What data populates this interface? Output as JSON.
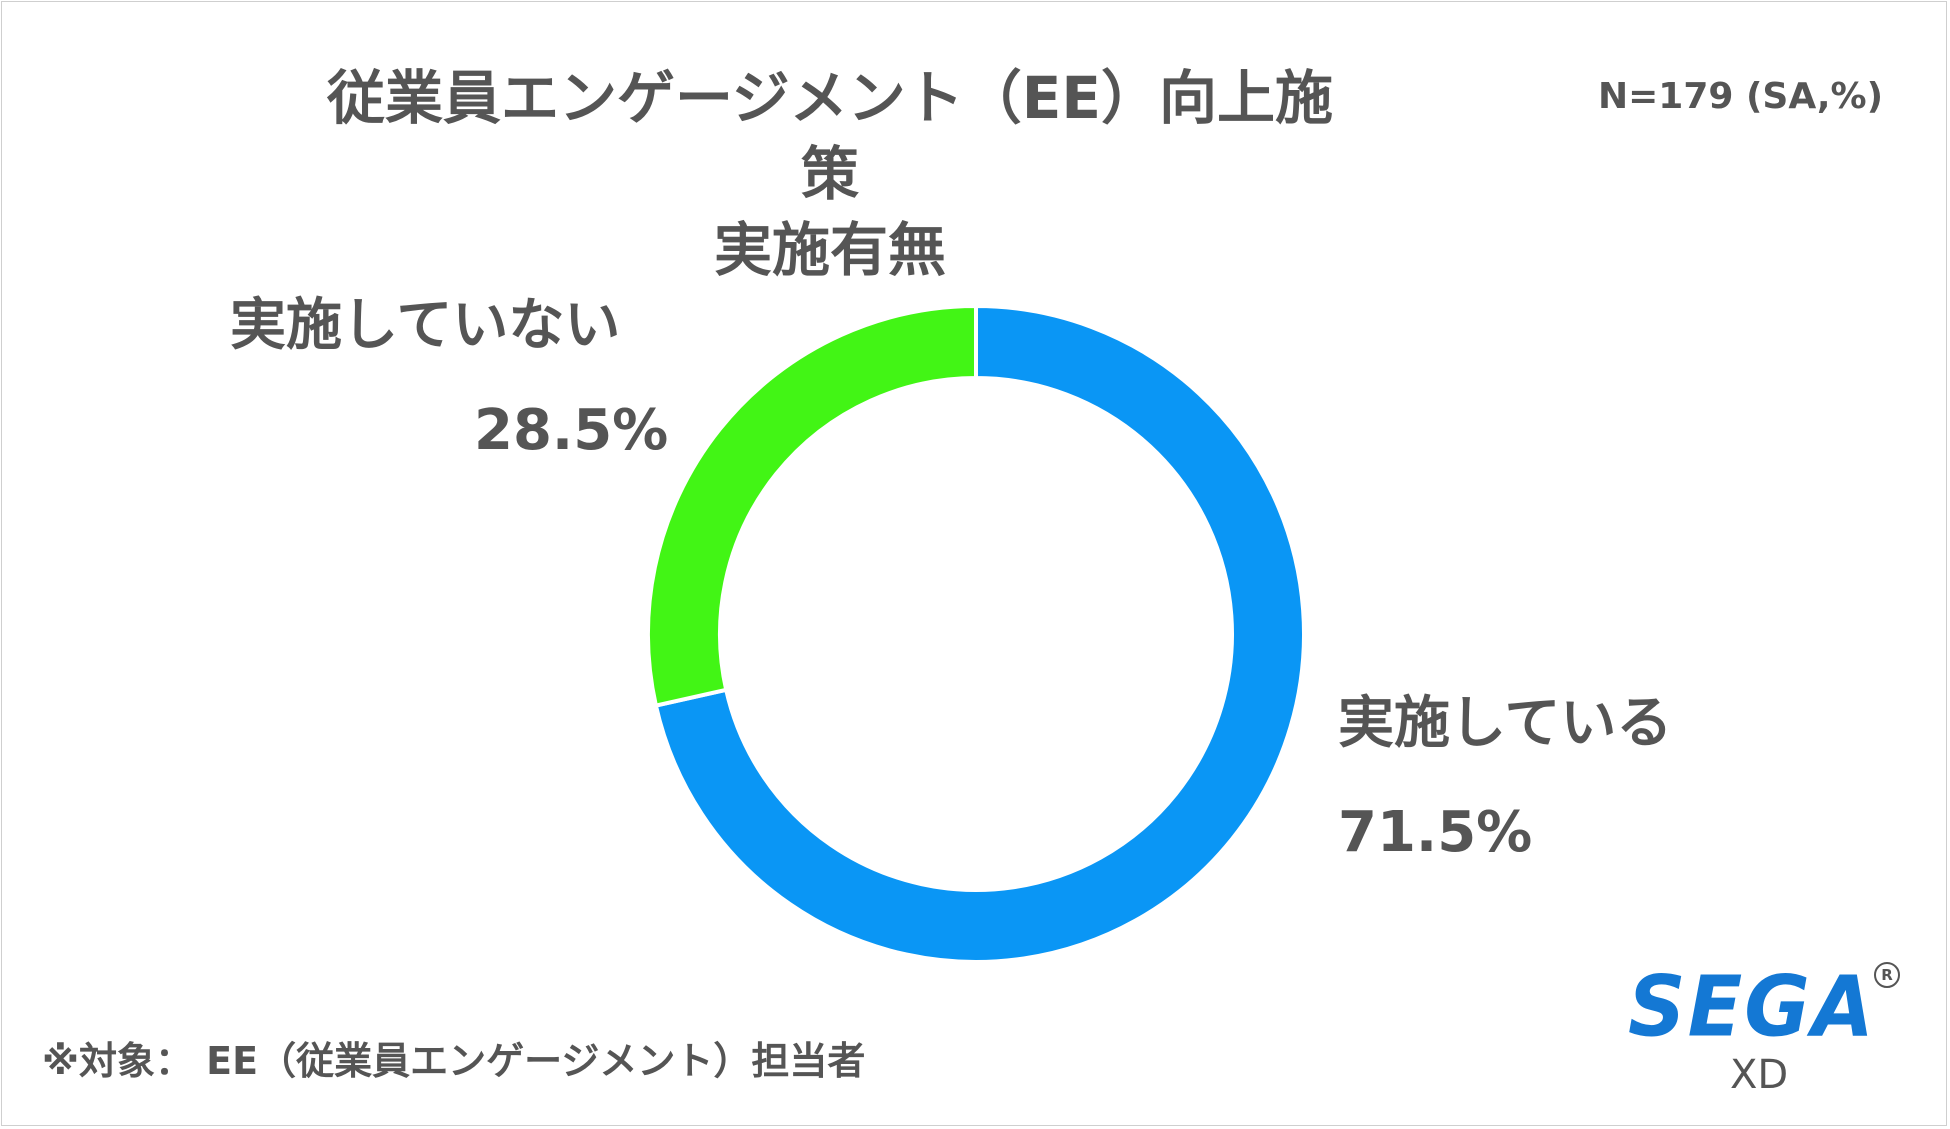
{
  "title_line1": "従業員エンゲージメント（EE）向上施策",
  "title_line2": "実施有無",
  "sample_note": "N=179 (SA,%)",
  "footnote": "※対象： EE（従業員エンゲージメント）担当者",
  "logo": {
    "brand": "SEGA",
    "registered": "R",
    "sub": "XD"
  },
  "chart_data": {
    "type": "pie",
    "donut": true,
    "title": "従業員エンゲージメント（EE）向上施策 実施有無",
    "categories": [
      "実施している",
      "実施していない"
    ],
    "values": [
      71.5,
      28.5
    ],
    "value_labels": [
      "71.5%",
      "28.5%"
    ],
    "colors": [
      "#0a96f5",
      "#42f515"
    ],
    "start": "12 o'clock",
    "direction": "clockwise"
  }
}
